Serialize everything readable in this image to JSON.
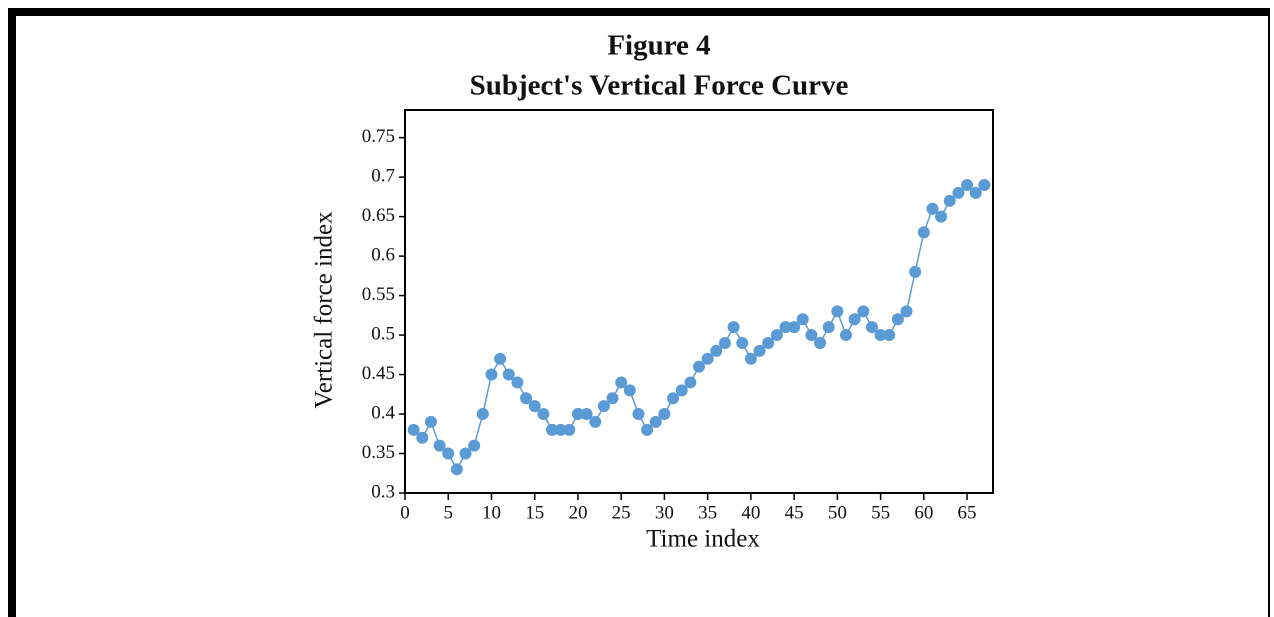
{
  "chart_data": {
    "type": "line",
    "title": "Figure 4",
    "subtitle": "Subject's Vertical Force Curve",
    "x_label": "Time index",
    "y_label": "Vertical force index",
    "x": [
      1,
      2,
      3,
      4,
      5,
      6,
      7,
      8,
      9,
      10,
      11,
      12,
      13,
      14,
      15,
      16,
      17,
      18,
      19,
      20,
      21,
      22,
      23,
      24,
      25,
      26,
      27,
      28,
      29,
      30,
      31,
      32,
      33,
      34,
      35,
      36,
      37,
      38,
      39,
      40,
      41,
      42,
      43,
      44,
      45,
      46,
      47,
      48,
      49,
      50,
      51,
      52,
      53,
      54,
      55,
      56,
      57,
      58,
      59,
      60,
      61,
      62,
      63,
      64,
      65,
      66,
      67
    ],
    "series": [
      {
        "name": "Vertical force index",
        "color": "#5b9bd5",
        "values": [
          0.38,
          0.37,
          0.39,
          0.36,
          0.35,
          0.33,
          0.35,
          0.36,
          0.4,
          0.45,
          0.47,
          0.45,
          0.44,
          0.42,
          0.41,
          0.4,
          0.38,
          0.38,
          0.38,
          0.4,
          0.4,
          0.39,
          0.41,
          0.42,
          0.44,
          0.43,
          0.4,
          0.38,
          0.39,
          0.4,
          0.42,
          0.43,
          0.44,
          0.46,
          0.47,
          0.48,
          0.49,
          0.51,
          0.49,
          0.47,
          0.48,
          0.49,
          0.5,
          0.51,
          0.51,
          0.52,
          0.5,
          0.49,
          0.51,
          0.53,
          0.5,
          0.52,
          0.53,
          0.51,
          0.5,
          0.5,
          0.52,
          0.53,
          0.58,
          0.63,
          0.66,
          0.65,
          0.67,
          0.68,
          0.69,
          0.68,
          0.69
        ]
      }
    ],
    "xlim": [
      0,
      68
    ],
    "xticks": [
      0,
      5,
      10,
      15,
      20,
      25,
      30,
      35,
      40,
      45,
      50,
      55,
      60,
      65
    ],
    "ylim": [
      0.3,
      0.785
    ],
    "yticks": [
      0.3,
      0.35,
      0.4,
      0.45,
      0.5,
      0.55,
      0.6,
      0.65,
      0.7,
      0.75
    ]
  }
}
